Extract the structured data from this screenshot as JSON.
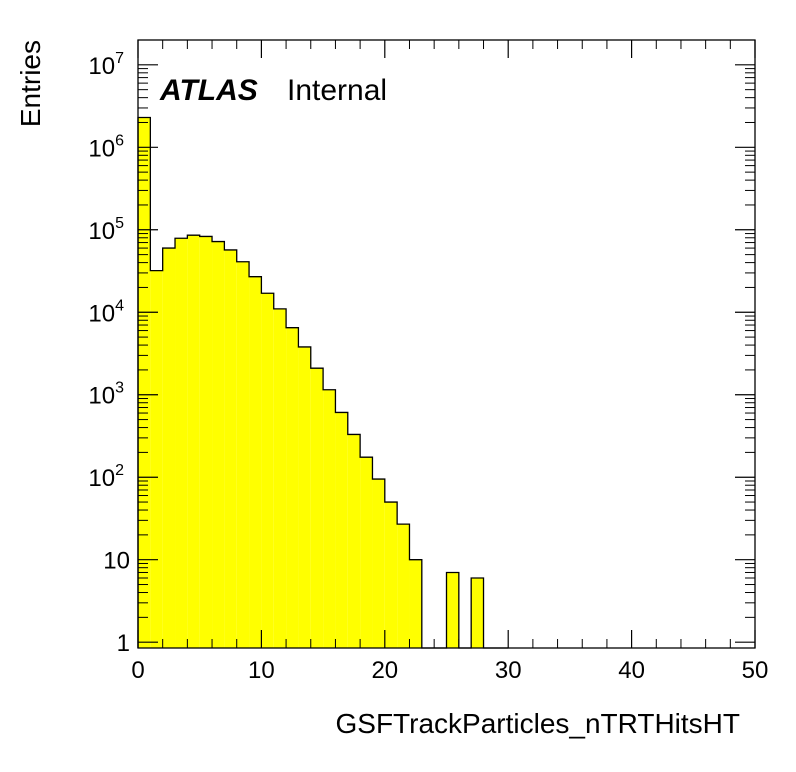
{
  "chart_data": {
    "type": "bar",
    "xlabel": "GSFTrackParticles_nTRTHitsHT",
    "ylabel": "Entries",
    "label_bold": "ATLAS",
    "label_normal": "Internal",
    "log_y": true,
    "xlim": [
      0,
      50
    ],
    "ylim": [
      0.85,
      20000000
    ],
    "bin_width": 1,
    "fill_color": "#ffff00",
    "line_color": "#000000",
    "x_ticks": [
      {
        "value": 0,
        "label": "0"
      },
      {
        "value": 10,
        "label": "10"
      },
      {
        "value": 20,
        "label": "20"
      },
      {
        "value": 30,
        "label": "30"
      },
      {
        "value": 40,
        "label": "40"
      },
      {
        "value": 50,
        "label": "50"
      }
    ],
    "y_ticks": [
      {
        "value": 1,
        "base": "1",
        "exp": ""
      },
      {
        "value": 10,
        "base": "10",
        "exp": ""
      },
      {
        "value": 100,
        "base": "10",
        "exp": "2"
      },
      {
        "value": 1000,
        "base": "10",
        "exp": "3"
      },
      {
        "value": 10000,
        "base": "10",
        "exp": "4"
      },
      {
        "value": 100000,
        "base": "10",
        "exp": "5"
      },
      {
        "value": 1000000,
        "base": "10",
        "exp": "6"
      },
      {
        "value": 10000000,
        "base": "10",
        "exp": "7"
      }
    ],
    "bins_low_edge": [
      0,
      1,
      2,
      3,
      4,
      5,
      6,
      7,
      8,
      9,
      10,
      11,
      12,
      13,
      14,
      15,
      16,
      17,
      18,
      19,
      20,
      21,
      22,
      23,
      24,
      25,
      26,
      27,
      28,
      29
    ],
    "values": [
      2300000,
      32000,
      60000,
      79000,
      86000,
      83000,
      72000,
      57000,
      41000,
      27000,
      17000,
      11000,
      6500,
      3800,
      2100,
      1150,
      610,
      330,
      175,
      95,
      50,
      27,
      10,
      0,
      0,
      7,
      0,
      6,
      0,
      0
    ]
  }
}
